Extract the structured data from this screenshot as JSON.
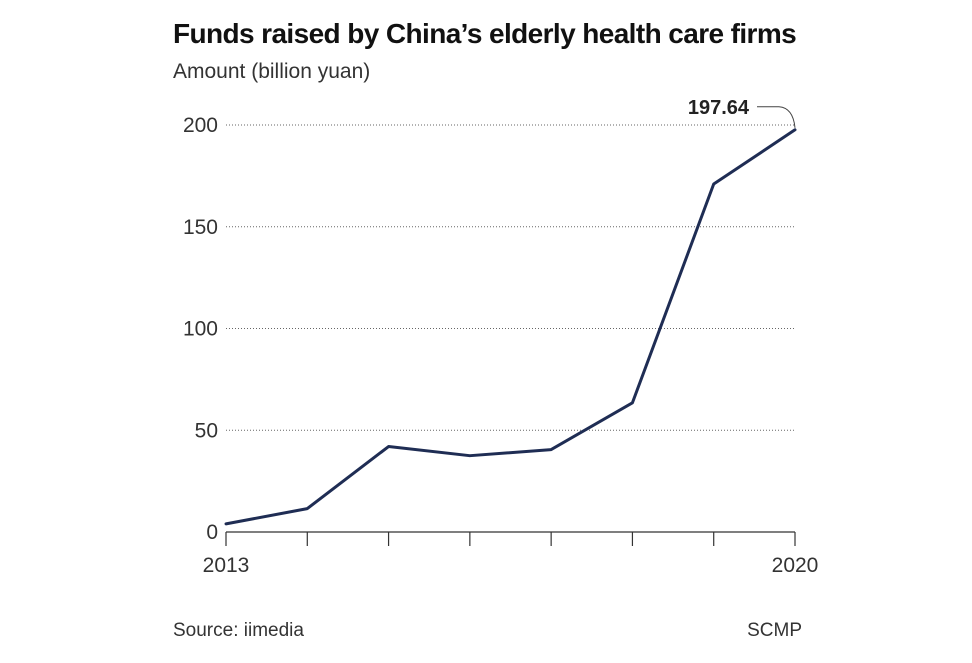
{
  "chart_data": {
    "type": "line",
    "title": "Funds raised by China’s elderly health care firms",
    "ylabel": "Amount (billion yuan)",
    "xlabel": "",
    "x": [
      2013,
      2014,
      2015,
      2016,
      2017,
      2018,
      2019,
      2020
    ],
    "x_tick_labels": [
      "2013",
      "",
      "",
      "",
      "",
      "",
      "",
      "2020"
    ],
    "series": [
      {
        "values": [
          4,
          11.5,
          42,
          37.5,
          40.5,
          63.5,
          171,
          197.64
        ]
      }
    ],
    "ylim": [
      0,
      200
    ],
    "yticks": [
      0,
      50,
      100,
      150,
      200
    ],
    "ytick_labels": [
      "0",
      "50",
      "100",
      "150",
      "200"
    ],
    "grid": "horizontal-dotted",
    "annotation": {
      "label": "197.64",
      "x": 2020,
      "y": 197.64
    },
    "line_color": "#1f2d54"
  },
  "footer": {
    "source": "Source: iimedia",
    "credit": "SCMP"
  }
}
